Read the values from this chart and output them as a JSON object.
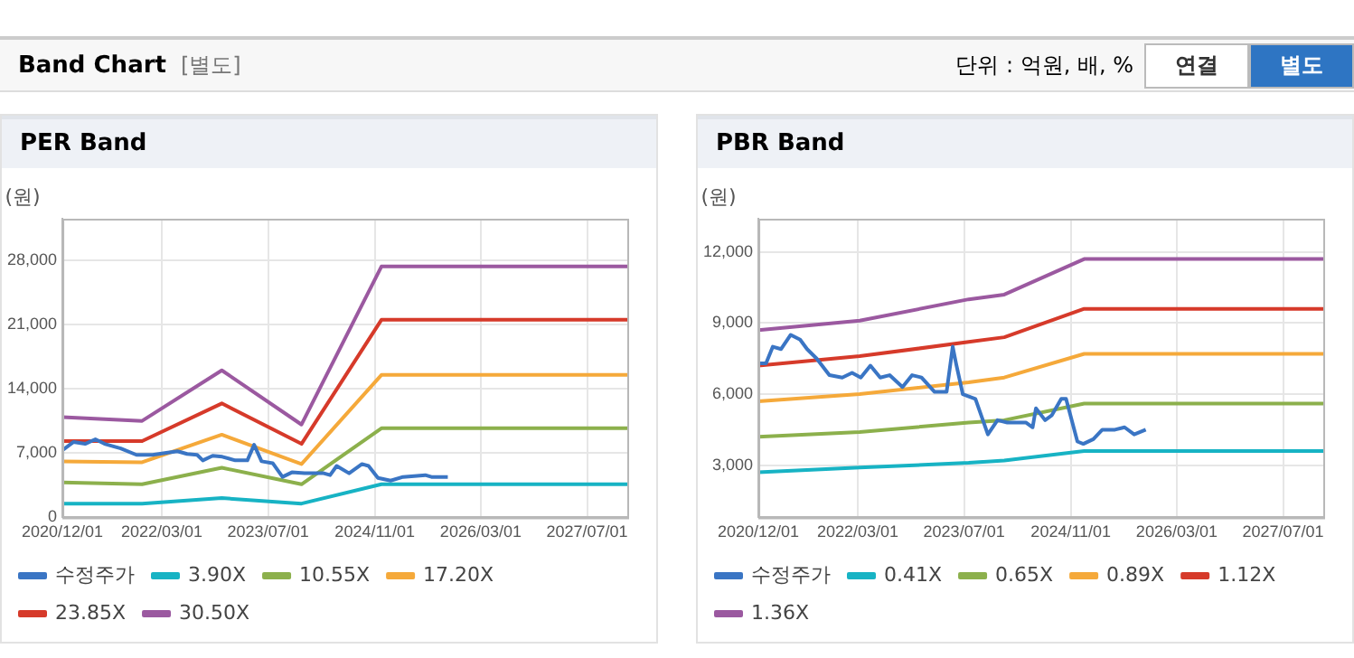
{
  "chart_data": [
    {
      "type": "other",
      "title": "Band Chart",
      "subtitle": "[별도]",
      "annotations": [
        "단위 : 억원, 배, %",
        "연결",
        "별도"
      ]
    },
    {
      "type": "line",
      "title": "PER Band",
      "ylabel": "(원)",
      "legend": "bottom",
      "grid": true,
      "marker": "none",
      "line_style": "solid",
      "xlim": [
        "2020-12-01",
        "2028-01-01"
      ],
      "xticks": [
        {
          "value": "2020-12-01",
          "label": "2020/12/01"
        },
        {
          "value": "2022-03-01",
          "label": "2022/03/01"
        },
        {
          "value": "2023-07-01",
          "label": "2023/07/01"
        },
        {
          "value": "2024-11-01",
          "label": "2024/11/01"
        },
        {
          "value": "2026-03-01",
          "label": "2026/03/01"
        },
        {
          "value": "2027-07-01",
          "label": "2027/07/01"
        }
      ],
      "ylim": [
        0,
        32500
      ],
      "yticks": [
        0,
        {
          "value": 7000,
          "label": "7,000"
        },
        {
          "value": 14000,
          "label": "14,000"
        },
        {
          "value": 21000,
          "label": "21,000"
        },
        {
          "value": 28000,
          "label": "28,000"
        }
      ],
      "series": [
        {
          "name": "수정주가",
          "color": "#3a75c4",
          "x": [
            "2020-12-01",
            "2021-01-20",
            "2021-03-15",
            "2021-05-01",
            "2021-06-12",
            "2021-08-25",
            "2021-11-05",
            "2022-01-18",
            "2022-03-15",
            "2022-05-12",
            "2022-06-25",
            "2022-08-10",
            "2022-09-05",
            "2022-10-20",
            "2022-12-03",
            "2023-02-01",
            "2023-03-28",
            "2023-04-28",
            "2023-06-01",
            "2023-07-22",
            "2023-09-05",
            "2023-10-18",
            "2023-12-15",
            "2024-03-12",
            "2024-04-10",
            "2024-05-10",
            "2024-07-06",
            "2024-09-03",
            "2024-10-03",
            "2024-11-15",
            "2025-01-12",
            "2025-03-10",
            "2025-06-20",
            "2025-07-18",
            "2025-10-01"
          ],
          "values": [
            7300,
            8200,
            8000,
            8500,
            8000,
            7500,
            6800,
            6800,
            7000,
            7200,
            6900,
            6800,
            6200,
            6700,
            6600,
            6200,
            6200,
            7900,
            6100,
            5900,
            4400,
            4900,
            4800,
            4800,
            4600,
            5600,
            4800,
            5800,
            5600,
            4300,
            4000,
            4400,
            4600,
            4400,
            4400
          ]
        },
        {
          "name": "3.90X",
          "color": "#17b3c4",
          "x": [
            "2020-12-01",
            "2021-12-01",
            "2022-12-01",
            "2023-12-01",
            "2024-12-01",
            "2028-01-01"
          ],
          "values": [
            1500,
            1500,
            2100,
            1500,
            3600,
            3600
          ]
        },
        {
          "name": "10.55X",
          "color": "#8cb04c",
          "x": [
            "2020-12-01",
            "2021-12-01",
            "2022-12-01",
            "2023-12-01",
            "2024-12-01",
            "2028-01-01"
          ],
          "values": [
            3800,
            3600,
            5400,
            3600,
            9700,
            9700
          ]
        },
        {
          "name": "17.20X",
          "color": "#f5a93a",
          "x": [
            "2020-12-01",
            "2021-12-01",
            "2022-12-01",
            "2023-12-01",
            "2024-12-01",
            "2028-01-01"
          ],
          "values": [
            6100,
            6000,
            9000,
            5800,
            15500,
            15500
          ]
        },
        {
          "name": "23.85X",
          "color": "#d63a2a",
          "x": [
            "2020-12-01",
            "2021-12-01",
            "2022-12-01",
            "2023-12-01",
            "2024-12-01",
            "2028-01-01"
          ],
          "values": [
            8300,
            8300,
            12400,
            8000,
            21500,
            21500
          ]
        },
        {
          "name": "30.50X",
          "color": "#9b59a0",
          "x": [
            "2020-12-01",
            "2021-12-01",
            "2022-12-01",
            "2023-12-01",
            "2024-12-01",
            "2028-01-01"
          ],
          "values": [
            10900,
            10500,
            16000,
            10100,
            27300,
            27300
          ]
        }
      ]
    },
    {
      "type": "line",
      "title": "PBR Band",
      "ylabel": "(원)",
      "legend": "bottom",
      "grid": true,
      "marker": "none",
      "line_style": "solid",
      "xlim": [
        "2020-12-01",
        "2028-01-01"
      ],
      "xticks": [
        {
          "value": "2020-12-01",
          "label": "2020/12/01"
        },
        {
          "value": "2022-03-01",
          "label": "2022/03/01"
        },
        {
          "value": "2023-07-01",
          "label": "2023/07/01"
        },
        {
          "value": "2024-11-01",
          "label": "2024/11/01"
        },
        {
          "value": "2026-03-01",
          "label": "2026/03/01"
        },
        {
          "value": "2027-07-01",
          "label": "2027/07/01"
        }
      ],
      "ylim": [
        800,
        13400
      ],
      "yticks": [
        {
          "value": 3000,
          "label": "3,000"
        },
        {
          "value": 6000,
          "label": "6,000"
        },
        {
          "value": 9000,
          "label": "9,000"
        },
        {
          "value": 12000,
          "label": "12,000"
        }
      ],
      "series": [
        {
          "name": "수정주가",
          "color": "#3a75c4",
          "x": [
            "2020-12-01",
            "2021-01-05",
            "2021-02-05",
            "2021-03-15",
            "2021-04-28",
            "2021-06-10",
            "2021-07-12",
            "2021-08-25",
            "2021-10-22",
            "2021-12-20",
            "2022-02-03",
            "2022-03-15",
            "2022-04-28",
            "2022-06-12",
            "2022-07-25",
            "2022-09-22",
            "2022-11-05",
            "2022-12-18",
            "2023-02-15",
            "2023-04-12",
            "2023-05-10",
            "2023-05-25",
            "2023-06-25",
            "2023-08-22",
            "2023-10-18",
            "2023-12-01",
            "2024-01-15",
            "2024-04-10",
            "2024-05-10",
            "2024-05-25",
            "2024-07-06",
            "2024-08-05",
            "2024-09-18",
            "2024-10-10",
            "2024-12-01",
            "2024-12-28",
            "2025-02-12",
            "2025-03-25",
            "2025-05-22",
            "2025-07-05",
            "2025-08-18",
            "2025-10-10"
          ],
          "values": [
            7300,
            7300,
            8000,
            7900,
            8500,
            8300,
            7900,
            7500,
            6800,
            6700,
            6900,
            6700,
            7200,
            6700,
            6800,
            6300,
            6800,
            6700,
            6100,
            6100,
            8000,
            7300,
            6000,
            5800,
            4300,
            4900,
            4800,
            4800,
            4600,
            5400,
            4900,
            5100,
            5800,
            5800,
            4000,
            3900,
            4100,
            4500,
            4500,
            4600,
            4300,
            4500
          ]
        },
        {
          "name": "0.41X",
          "color": "#17b3c4",
          "x": [
            "2020-12-01",
            "2022-03-10",
            "2023-07-22",
            "2024-01-01",
            "2025-01-01",
            "2028-01-01"
          ],
          "values": [
            2700,
            2900,
            3100,
            3200,
            3600,
            3600
          ]
        },
        {
          "name": "0.65X",
          "color": "#8cb04c",
          "x": [
            "2020-12-01",
            "2022-03-10",
            "2023-07-22",
            "2024-01-01",
            "2025-01-01",
            "2028-01-01"
          ],
          "values": [
            4200,
            4400,
            4800,
            4900,
            5600,
            5600
          ]
        },
        {
          "name": "0.89X",
          "color": "#f5a93a",
          "x": [
            "2020-12-01",
            "2022-03-10",
            "2023-07-22",
            "2024-01-01",
            "2025-01-01",
            "2028-01-01"
          ],
          "values": [
            5700,
            6000,
            6500,
            6700,
            7700,
            7700
          ]
        },
        {
          "name": "1.12X",
          "color": "#d63a2a",
          "x": [
            "2020-12-01",
            "2022-03-10",
            "2023-07-22",
            "2024-01-01",
            "2025-01-01",
            "2028-01-01"
          ],
          "values": [
            7200,
            7600,
            8200,
            8400,
            9600,
            9600
          ]
        },
        {
          "name": "1.36X",
          "color": "#9b59a0",
          "x": [
            "2020-12-01",
            "2022-03-10",
            "2023-07-22",
            "2024-01-01",
            "2025-01-01",
            "2028-01-01"
          ],
          "values": [
            8700,
            9100,
            10000,
            10200,
            11700,
            11700
          ]
        }
      ]
    }
  ]
}
